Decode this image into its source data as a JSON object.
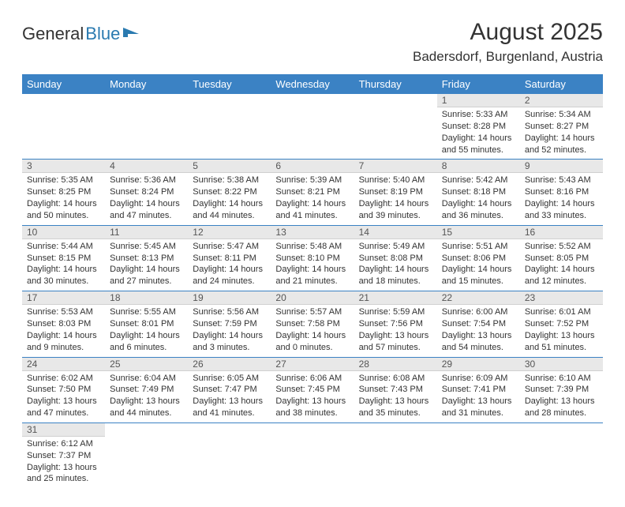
{
  "logo": {
    "part1": "General",
    "part2": "Blue"
  },
  "title": "August 2025",
  "location": "Badersdorf, Burgenland, Austria",
  "colors": {
    "header_bg": "#3b82c4",
    "header_text": "#ffffff",
    "daynum_bg": "#e8e8e8",
    "row_border": "#3b82c4",
    "logo_blue": "#2a7ab0"
  },
  "weekdays": [
    "Sunday",
    "Monday",
    "Tuesday",
    "Wednesday",
    "Thursday",
    "Friday",
    "Saturday"
  ],
  "weeks": [
    [
      null,
      null,
      null,
      null,
      null,
      {
        "n": "1",
        "sr": "Sunrise: 5:33 AM",
        "ss": "Sunset: 8:28 PM",
        "dl": "Daylight: 14 hours and 55 minutes."
      },
      {
        "n": "2",
        "sr": "Sunrise: 5:34 AM",
        "ss": "Sunset: 8:27 PM",
        "dl": "Daylight: 14 hours and 52 minutes."
      }
    ],
    [
      {
        "n": "3",
        "sr": "Sunrise: 5:35 AM",
        "ss": "Sunset: 8:25 PM",
        "dl": "Daylight: 14 hours and 50 minutes."
      },
      {
        "n": "4",
        "sr": "Sunrise: 5:36 AM",
        "ss": "Sunset: 8:24 PM",
        "dl": "Daylight: 14 hours and 47 minutes."
      },
      {
        "n": "5",
        "sr": "Sunrise: 5:38 AM",
        "ss": "Sunset: 8:22 PM",
        "dl": "Daylight: 14 hours and 44 minutes."
      },
      {
        "n": "6",
        "sr": "Sunrise: 5:39 AM",
        "ss": "Sunset: 8:21 PM",
        "dl": "Daylight: 14 hours and 41 minutes."
      },
      {
        "n": "7",
        "sr": "Sunrise: 5:40 AM",
        "ss": "Sunset: 8:19 PM",
        "dl": "Daylight: 14 hours and 39 minutes."
      },
      {
        "n": "8",
        "sr": "Sunrise: 5:42 AM",
        "ss": "Sunset: 8:18 PM",
        "dl": "Daylight: 14 hours and 36 minutes."
      },
      {
        "n": "9",
        "sr": "Sunrise: 5:43 AM",
        "ss": "Sunset: 8:16 PM",
        "dl": "Daylight: 14 hours and 33 minutes."
      }
    ],
    [
      {
        "n": "10",
        "sr": "Sunrise: 5:44 AM",
        "ss": "Sunset: 8:15 PM",
        "dl": "Daylight: 14 hours and 30 minutes."
      },
      {
        "n": "11",
        "sr": "Sunrise: 5:45 AM",
        "ss": "Sunset: 8:13 PM",
        "dl": "Daylight: 14 hours and 27 minutes."
      },
      {
        "n": "12",
        "sr": "Sunrise: 5:47 AM",
        "ss": "Sunset: 8:11 PM",
        "dl": "Daylight: 14 hours and 24 minutes."
      },
      {
        "n": "13",
        "sr": "Sunrise: 5:48 AM",
        "ss": "Sunset: 8:10 PM",
        "dl": "Daylight: 14 hours and 21 minutes."
      },
      {
        "n": "14",
        "sr": "Sunrise: 5:49 AM",
        "ss": "Sunset: 8:08 PM",
        "dl": "Daylight: 14 hours and 18 minutes."
      },
      {
        "n": "15",
        "sr": "Sunrise: 5:51 AM",
        "ss": "Sunset: 8:06 PM",
        "dl": "Daylight: 14 hours and 15 minutes."
      },
      {
        "n": "16",
        "sr": "Sunrise: 5:52 AM",
        "ss": "Sunset: 8:05 PM",
        "dl": "Daylight: 14 hours and 12 minutes."
      }
    ],
    [
      {
        "n": "17",
        "sr": "Sunrise: 5:53 AM",
        "ss": "Sunset: 8:03 PM",
        "dl": "Daylight: 14 hours and 9 minutes."
      },
      {
        "n": "18",
        "sr": "Sunrise: 5:55 AM",
        "ss": "Sunset: 8:01 PM",
        "dl": "Daylight: 14 hours and 6 minutes."
      },
      {
        "n": "19",
        "sr": "Sunrise: 5:56 AM",
        "ss": "Sunset: 7:59 PM",
        "dl": "Daylight: 14 hours and 3 minutes."
      },
      {
        "n": "20",
        "sr": "Sunrise: 5:57 AM",
        "ss": "Sunset: 7:58 PM",
        "dl": "Daylight: 14 hours and 0 minutes."
      },
      {
        "n": "21",
        "sr": "Sunrise: 5:59 AM",
        "ss": "Sunset: 7:56 PM",
        "dl": "Daylight: 13 hours and 57 minutes."
      },
      {
        "n": "22",
        "sr": "Sunrise: 6:00 AM",
        "ss": "Sunset: 7:54 PM",
        "dl": "Daylight: 13 hours and 54 minutes."
      },
      {
        "n": "23",
        "sr": "Sunrise: 6:01 AM",
        "ss": "Sunset: 7:52 PM",
        "dl": "Daylight: 13 hours and 51 minutes."
      }
    ],
    [
      {
        "n": "24",
        "sr": "Sunrise: 6:02 AM",
        "ss": "Sunset: 7:50 PM",
        "dl": "Daylight: 13 hours and 47 minutes."
      },
      {
        "n": "25",
        "sr": "Sunrise: 6:04 AM",
        "ss": "Sunset: 7:49 PM",
        "dl": "Daylight: 13 hours and 44 minutes."
      },
      {
        "n": "26",
        "sr": "Sunrise: 6:05 AM",
        "ss": "Sunset: 7:47 PM",
        "dl": "Daylight: 13 hours and 41 minutes."
      },
      {
        "n": "27",
        "sr": "Sunrise: 6:06 AM",
        "ss": "Sunset: 7:45 PM",
        "dl": "Daylight: 13 hours and 38 minutes."
      },
      {
        "n": "28",
        "sr": "Sunrise: 6:08 AM",
        "ss": "Sunset: 7:43 PM",
        "dl": "Daylight: 13 hours and 35 minutes."
      },
      {
        "n": "29",
        "sr": "Sunrise: 6:09 AM",
        "ss": "Sunset: 7:41 PM",
        "dl": "Daylight: 13 hours and 31 minutes."
      },
      {
        "n": "30",
        "sr": "Sunrise: 6:10 AM",
        "ss": "Sunset: 7:39 PM",
        "dl": "Daylight: 13 hours and 28 minutes."
      }
    ],
    [
      {
        "n": "31",
        "sr": "Sunrise: 6:12 AM",
        "ss": "Sunset: 7:37 PM",
        "dl": "Daylight: 13 hours and 25 minutes."
      },
      null,
      null,
      null,
      null,
      null,
      null
    ]
  ]
}
